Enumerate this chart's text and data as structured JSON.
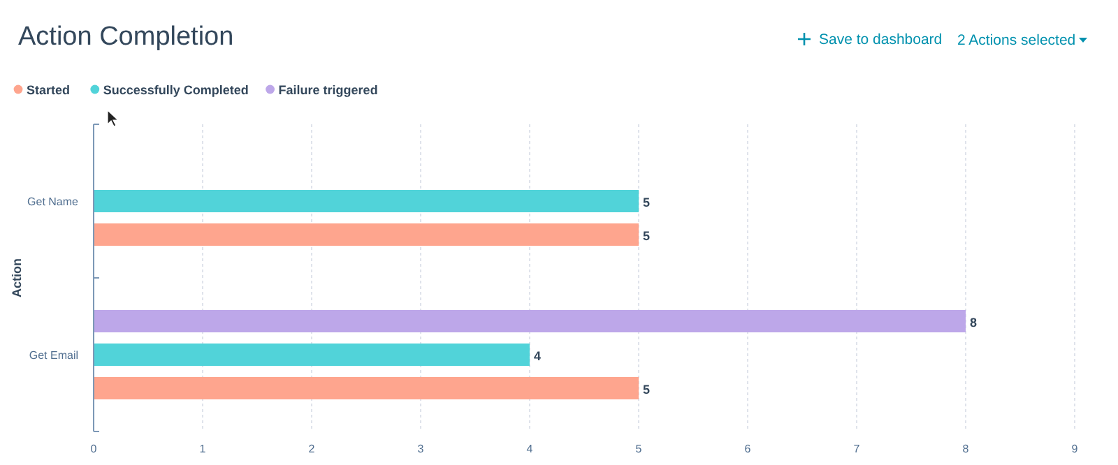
{
  "chart_data": {
    "type": "bar",
    "orientation": "horizontal",
    "title": "Action Completion",
    "ylabel": "Action",
    "categories": [
      "Get Name",
      "Get Email"
    ],
    "series": [
      {
        "name": "Started",
        "color": "#fea58e",
        "values": [
          5,
          5
        ]
      },
      {
        "name": "Successfully Completed",
        "color": "#51d3d9",
        "values": [
          5,
          4
        ]
      },
      {
        "name": "Failure triggered",
        "color": "#bda7e9",
        "values": [
          null,
          8
        ]
      }
    ],
    "xlim": [
      0,
      9
    ],
    "xticks": [
      0,
      1,
      2,
      3,
      4,
      5,
      6,
      7,
      8,
      9
    ],
    "grid": "x",
    "legend": "top left",
    "data_labels": true,
    "annotations": [
      "Save to dashboard",
      "2 Actions selected"
    ]
  }
}
